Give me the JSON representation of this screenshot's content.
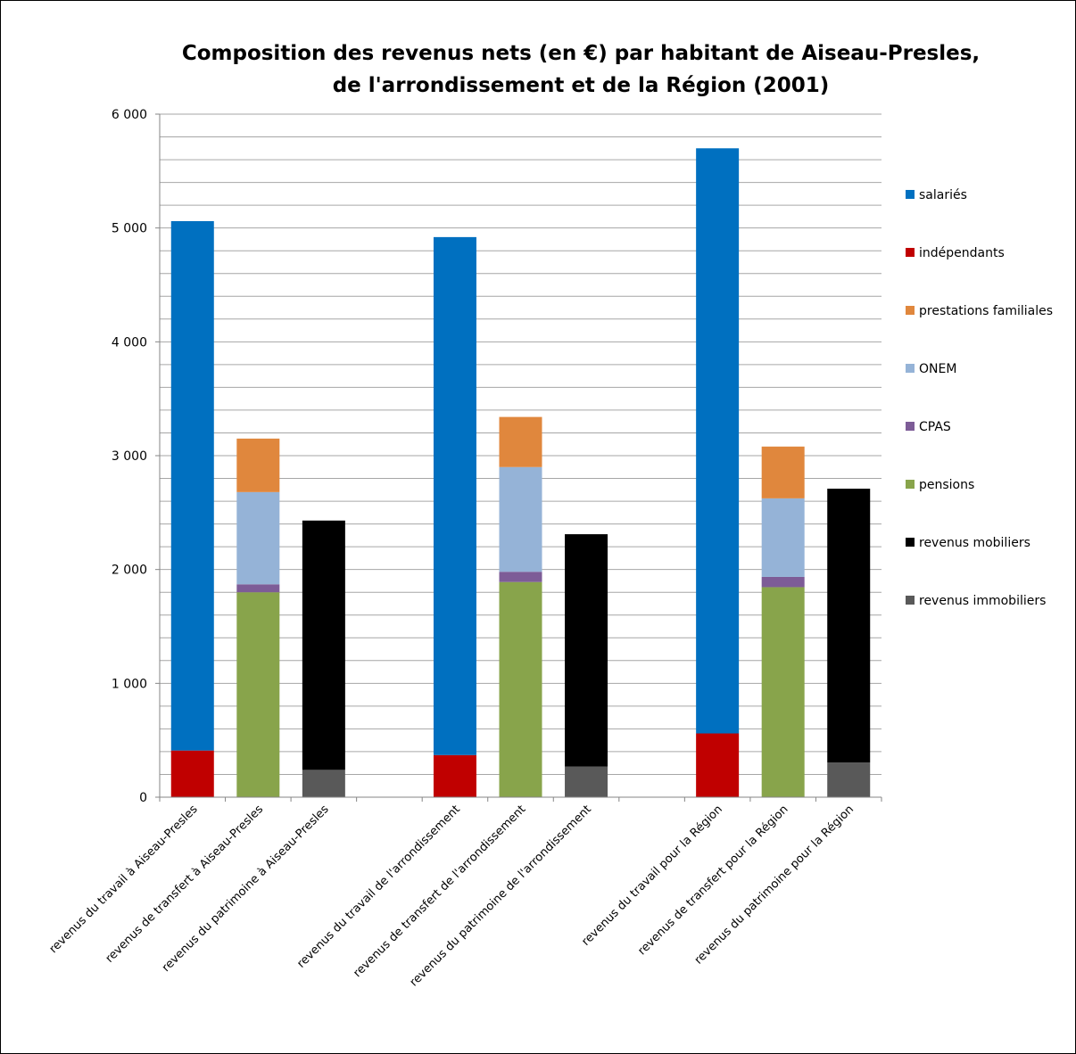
{
  "chart_data": {
    "type": "bar",
    "stacked": true,
    "title": [
      "Composition  des revenus nets (en €) par habitant de Aiseau-Presles,",
      "de l'arrondissement  et de la Région (2001)"
    ],
    "xlabel": "",
    "ylabel": "",
    "ylim": [
      0,
      6000
    ],
    "yticks": [
      0,
      1000,
      2000,
      3000,
      4000,
      5000,
      6000
    ],
    "ytick_labels": [
      "0",
      "1 000",
      "2 000",
      "3 000",
      "4 000",
      "5 000",
      "6 000"
    ],
    "minor_grid_step": 200,
    "grid": true,
    "legend_position": "right",
    "categories": [
      "revenus du travail à Aiseau-Presles",
      "revenus de transfert à Aiseau-Presles",
      "revenus du patrimoine à Aiseau-Presles",
      "",
      "revenus du travail de l'arrondissement",
      "revenus de transfert de l'arrondissement",
      "revenus du patrimoine de l'arrondissement",
      "",
      "revenus du travail pour la Région",
      "revenus de transfert pour la Région",
      "revenus du patrimoine pour la Région"
    ],
    "series": [
      {
        "name": "revenus immobiliers",
        "color": "#595959",
        "values": [
          0,
          0,
          240,
          0,
          0,
          0,
          270,
          0,
          0,
          0,
          305
        ]
      },
      {
        "name": "pensions",
        "color": "#88A44B",
        "values": [
          0,
          1800,
          0,
          0,
          0,
          1890,
          0,
          0,
          0,
          1845,
          0
        ]
      },
      {
        "name": "CPAS",
        "color": "#7D5C97",
        "values": [
          0,
          70,
          0,
          0,
          0,
          90,
          0,
          0,
          0,
          90,
          0
        ]
      },
      {
        "name": "ONEM",
        "color": "#95B3D7",
        "values": [
          0,
          810,
          0,
          0,
          0,
          920,
          0,
          0,
          0,
          690,
          0
        ]
      },
      {
        "name": "prestations familiales",
        "color": "#E0873D",
        "values": [
          0,
          470,
          0,
          0,
          0,
          440,
          0,
          0,
          0,
          455,
          0
        ]
      },
      {
        "name": "indépendants",
        "color": "#C00000",
        "values": [
          410,
          0,
          0,
          0,
          370,
          0,
          0,
          0,
          560,
          0,
          0
        ]
      },
      {
        "name": "salariés",
        "color": "#0070C0",
        "values": [
          4650,
          0,
          0,
          0,
          4550,
          0,
          0,
          0,
          5140,
          0,
          0
        ]
      },
      {
        "name": "revenus mobiliers",
        "color": "#000000",
        "values": [
          0,
          0,
          2190,
          0,
          0,
          0,
          2040,
          0,
          0,
          0,
          2405
        ]
      }
    ],
    "legend_order": [
      "salariés",
      "indépendants",
      "prestations familiales",
      "ONEM",
      "CPAS",
      "pensions",
      "revenus mobiliers",
      "revenus immobiliers"
    ]
  }
}
